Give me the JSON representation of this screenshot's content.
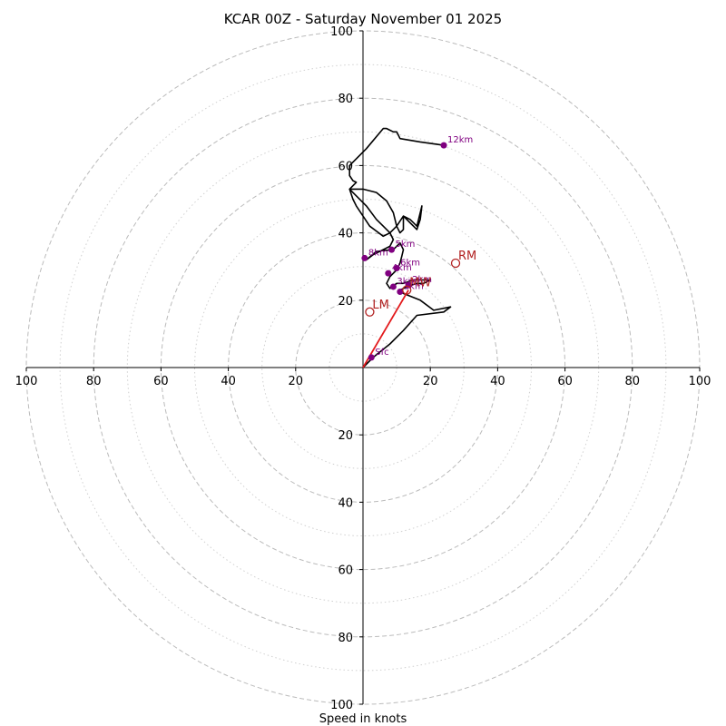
{
  "chart_data": {
    "type": "hodograph",
    "title": "KCAR 00Z - Saturday November 01 2025",
    "xlabel": "Speed in knots",
    "ylabel": "",
    "units": "knots",
    "max_speed": 100,
    "axis_ticks": [
      20,
      40,
      60,
      80,
      100
    ],
    "dashed_rings": [
      20,
      40,
      60,
      80,
      100
    ],
    "dotted_rings": [
      10,
      30,
      50,
      70,
      90
    ],
    "tick_labels": {
      "left": [
        "100",
        "80",
        "60",
        "40",
        "20"
      ],
      "right": [
        "20",
        "40",
        "60",
        "80",
        "100"
      ],
      "top": [
        "100",
        "80",
        "60",
        "40",
        "20"
      ],
      "bottom": [
        "20",
        "40",
        "60",
        "80",
        "100"
      ]
    },
    "hodograph_trace": [
      [
        0,
        0
      ],
      [
        3,
        3
      ],
      [
        8,
        7
      ],
      [
        12,
        11
      ],
      [
        16,
        15.5
      ],
      [
        24,
        16.5
      ],
      [
        26,
        18
      ],
      [
        21,
        17
      ],
      [
        17,
        20
      ],
      [
        12,
        22
      ],
      [
        11,
        23
      ],
      [
        13,
        24
      ],
      [
        16,
        25
      ],
      [
        18,
        25
      ],
      [
        20,
        26
      ],
      [
        15,
        26
      ],
      [
        12,
        25
      ],
      [
        10,
        25
      ],
      [
        8,
        23.5
      ],
      [
        7,
        25
      ],
      [
        8,
        27
      ],
      [
        10,
        29
      ],
      [
        10.5,
        30
      ],
      [
        11,
        31
      ],
      [
        11.5,
        33
      ],
      [
        12,
        35
      ],
      [
        11,
        37
      ],
      [
        9,
        35
      ],
      [
        4,
        34.5
      ],
      [
        1,
        32
      ],
      [
        3,
        33.5
      ],
      [
        6,
        35
      ],
      [
        8,
        36
      ],
      [
        9,
        38
      ],
      [
        8,
        40
      ],
      [
        6,
        42
      ],
      [
        4,
        44
      ],
      [
        1,
        48
      ],
      [
        -2,
        51
      ],
      [
        -4,
        53
      ],
      [
        0,
        53
      ],
      [
        4,
        52
      ],
      [
        7,
        49.5
      ],
      [
        9,
        46
      ],
      [
        10,
        42
      ],
      [
        11,
        40
      ],
      [
        12,
        41
      ],
      [
        12,
        43
      ],
      [
        12,
        45
      ],
      [
        14,
        43
      ],
      [
        16,
        41
      ],
      [
        17,
        44
      ],
      [
        17.5,
        48
      ],
      [
        16,
        42
      ],
      [
        14,
        44
      ],
      [
        12,
        45
      ],
      [
        10,
        42
      ],
      [
        8,
        40
      ],
      [
        6,
        39
      ],
      [
        2,
        42
      ],
      [
        0,
        45
      ],
      [
        -2,
        48
      ],
      [
        -3,
        50
      ],
      [
        -4,
        53
      ],
      [
        -2,
        55
      ],
      [
        -3,
        55.5
      ],
      [
        -4,
        57
      ],
      [
        -4,
        60
      ],
      [
        1,
        65
      ],
      [
        6,
        71
      ],
      [
        7,
        71
      ],
      [
        9,
        70
      ],
      [
        10,
        70
      ],
      [
        10.5,
        69
      ],
      [
        11,
        68
      ],
      [
        17,
        67
      ],
      [
        24,
        66
      ]
    ],
    "height_markers": [
      {
        "label": "Sfc",
        "u": 2.5,
        "v": 3.0
      },
      {
        "label": "1km",
        "u": 11.0,
        "v": 22.5
      },
      {
        "label": "2km",
        "u": 13.5,
        "v": 24.5
      },
      {
        "label": "3km",
        "u": 9.0,
        "v": 24.0
      },
      {
        "label": "4km",
        "u": 7.5,
        "v": 28.0
      },
      {
        "label": "5km",
        "u": 8.5,
        "v": 35.0
      },
      {
        "label": "6km",
        "u": 10.0,
        "v": 29.5
      },
      {
        "label": "8km",
        "u": 0.5,
        "v": 32.5
      },
      {
        "label": "12km",
        "u": 24.0,
        "v": 66.0
      }
    ],
    "storm_motion": [
      {
        "label": "RM",
        "u": 27.5,
        "v": 31.0
      },
      {
        "label": "LM",
        "u": 2.0,
        "v": 16.5
      },
      {
        "label": "MW",
        "u": 13.0,
        "v": 23.0
      }
    ],
    "shear_vector": {
      "from": [
        0,
        0
      ],
      "to": [
        13.5,
        23.0
      ]
    },
    "colors": {
      "grid": "#bbbbbb",
      "axes": "#000000",
      "trace": "#000000",
      "height_marker": "#800080",
      "storm_motion": "#b22222",
      "shear_vector": "#e31a1c"
    }
  }
}
